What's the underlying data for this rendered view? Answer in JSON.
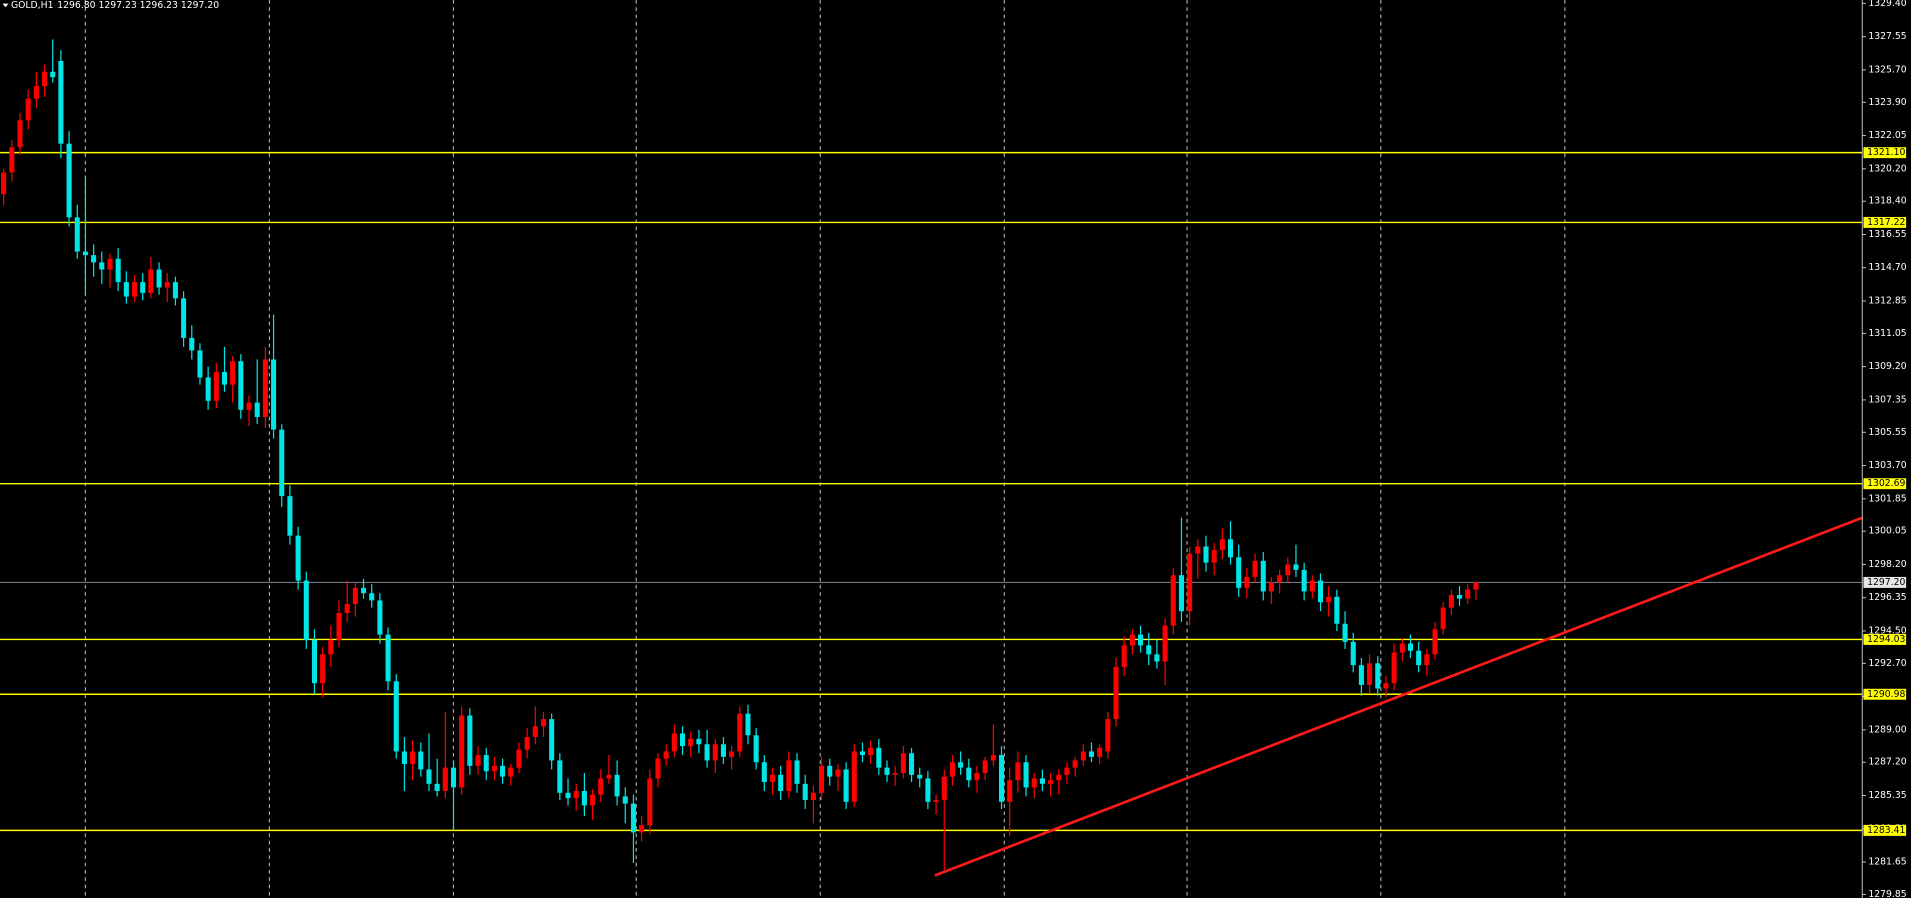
{
  "chart_data": {
    "type": "candlestick",
    "symbol": "GOLD,H1",
    "header_prices": "1296.80 1297.23 1296.23 1297.20",
    "up_color": "#ff0000",
    "down_color": "#00e5e5",
    "level_color": "#ffff00",
    "trendline_color": "#ff1a1a",
    "grid": true,
    "ylim": [
      1279.65,
      1329.59
    ],
    "yticks": [
      {
        "value": 1329.4,
        "label": "1329.40"
      },
      1327.55,
      {
        "value": 1325.7,
        "label": "1325.70"
      },
      {
        "value": 1323.9,
        "label": "1323.90"
      },
      1322.05,
      {
        "value": 1320.2,
        "label": "1320.20"
      },
      {
        "value": 1318.4,
        "label": "1318.40"
      },
      1316.55,
      {
        "value": 1314.7,
        "label": "1314.70"
      },
      1312.85,
      1311.05,
      {
        "value": 1309.2,
        "label": "1309.20"
      },
      1307.35,
      1305.55,
      {
        "value": 1303.7,
        "label": "1303.70"
      },
      1301.85,
      1300.05,
      {
        "value": 1298.2,
        "label": "1298.20"
      },
      1296.35,
      {
        "value": 1294.5,
        "label": "1294.50"
      },
      {
        "value": 1292.7,
        "label": "1292.70"
      },
      1290.85,
      {
        "value": 1289.0,
        "label": "1289.00"
      },
      {
        "value": 1287.2,
        "label": "1287.20"
      },
      1285.35,
      {
        "value": 1283.5,
        "label": "1283.50"
      },
      1281.65,
      1279.85
    ],
    "levels": [
      {
        "value": 1321.1,
        "label": "1321.10"
      },
      {
        "value": 1317.22,
        "label": "1317.22"
      },
      {
        "value": 1302.69,
        "label": "1302.69"
      },
      {
        "value": 1294.03,
        "label": "1294.03"
      },
      {
        "value": 1290.98,
        "label": "1290.98"
      },
      {
        "value": 1283.41,
        "label": "1283.41"
      }
    ],
    "last_price": {
      "value": 1297.2,
      "label": "1297.20"
    },
    "trendline": {
      "start_price": 1280.9,
      "end_price": 1300.8
    },
    "ohlc": [
      [
        1318.8,
        1320.2,
        1318.2,
        1320.0
      ],
      [
        1320.0,
        1321.8,
        1319.5,
        1321.4
      ],
      [
        1321.4,
        1323.3,
        1321.0,
        1322.9
      ],
      [
        1322.9,
        1324.6,
        1322.4,
        1324.1
      ],
      [
        1324.1,
        1325.6,
        1323.6,
        1324.8
      ],
      [
        1324.8,
        1326.0,
        1324.2,
        1325.6
      ],
      [
        1325.6,
        1327.4,
        1325.0,
        1325.3
      ],
      [
        1326.2,
        1326.8,
        1320.8,
        1321.6
      ],
      [
        1321.6,
        1322.3,
        1317.0,
        1317.5
      ],
      [
        1317.5,
        1318.2,
        1315.2,
        1315.6
      ],
      [
        1315.6,
        1319.8,
        1313.2,
        1315.4
      ],
      [
        1315.4,
        1316.0,
        1314.2,
        1315.0
      ],
      [
        1315.0,
        1315.6,
        1313.8,
        1314.6
      ],
      [
        1314.6,
        1315.5,
        1313.6,
        1315.2
      ],
      [
        1315.2,
        1315.8,
        1313.4,
        1313.9
      ],
      [
        1313.9,
        1314.5,
        1312.7,
        1313.1
      ],
      [
        1313.1,
        1314.3,
        1312.8,
        1313.9
      ],
      [
        1313.9,
        1314.4,
        1312.9,
        1313.3
      ],
      [
        1313.3,
        1315.3,
        1313.0,
        1314.6
      ],
      [
        1314.6,
        1315.0,
        1313.2,
        1313.6
      ],
      [
        1313.6,
        1314.4,
        1312.8,
        1313.9
      ],
      [
        1313.9,
        1314.2,
        1312.6,
        1313.0
      ],
      [
        1313.0,
        1313.4,
        1310.3,
        1310.8
      ],
      [
        1310.8,
        1311.5,
        1309.6,
        1310.1
      ],
      [
        1310.1,
        1310.5,
        1308.2,
        1308.6
      ],
      [
        1308.6,
        1309.2,
        1306.8,
        1307.3
      ],
      [
        1307.3,
        1309.4,
        1306.9,
        1308.9
      ],
      [
        1308.9,
        1310.3,
        1307.8,
        1308.2
      ],
      [
        1308.2,
        1309.8,
        1307.2,
        1309.5
      ],
      [
        1309.5,
        1309.9,
        1306.3,
        1306.8
      ],
      [
        1306.8,
        1307.6,
        1305.9,
        1307.2
      ],
      [
        1307.2,
        1309.6,
        1306.0,
        1306.4
      ],
      [
        1306.4,
        1310.3,
        1305.8,
        1309.6
      ],
      [
        1309.6,
        1312.1,
        1305.2,
        1305.7
      ],
      [
        1305.7,
        1306.0,
        1301.4,
        1302.0
      ],
      [
        1302.0,
        1302.6,
        1299.3,
        1299.8
      ],
      [
        1299.8,
        1300.3,
        1296.8,
        1297.3
      ],
      [
        1297.3,
        1297.8,
        1293.5,
        1294.0
      ],
      [
        1294.0,
        1294.6,
        1291.0,
        1291.6
      ],
      [
        1291.6,
        1293.6,
        1290.8,
        1293.2
      ],
      [
        1293.2,
        1294.8,
        1292.5,
        1294.0
      ],
      [
        1294.0,
        1296.2,
        1293.6,
        1295.5
      ],
      [
        1295.5,
        1297.3,
        1295.0,
        1296.0
      ],
      [
        1296.0,
        1297.2,
        1295.3,
        1296.9
      ],
      [
        1296.9,
        1297.4,
        1296.3,
        1296.6
      ],
      [
        1296.6,
        1297.1,
        1295.8,
        1296.2
      ],
      [
        1296.2,
        1296.6,
        1293.8,
        1294.3
      ],
      [
        1294.3,
        1294.7,
        1291.2,
        1291.7
      ],
      [
        1291.7,
        1292.1,
        1287.4,
        1287.8
      ],
      [
        1287.8,
        1288.6,
        1285.6,
        1287.1
      ],
      [
        1287.1,
        1288.4,
        1286.2,
        1287.8
      ],
      [
        1287.8,
        1288.3,
        1286.4,
        1286.8
      ],
      [
        1286.8,
        1288.8,
        1285.6,
        1286.0
      ],
      [
        1286.0,
        1287.4,
        1285.3,
        1285.6
      ],
      [
        1285.6,
        1290.0,
        1285.2,
        1286.9
      ],
      [
        1286.9,
        1287.3,
        1283.4,
        1285.8
      ],
      [
        1285.8,
        1290.3,
        1285.4,
        1289.8
      ],
      [
        1289.8,
        1290.2,
        1286.5,
        1287.0
      ],
      [
        1287.0,
        1288.1,
        1286.5,
        1287.6
      ],
      [
        1287.6,
        1288.0,
        1286.2,
        1286.7
      ],
      [
        1286.7,
        1287.5,
        1286.2,
        1287.0
      ],
      [
        1287.0,
        1287.4,
        1286.0,
        1286.4
      ],
      [
        1286.4,
        1287.1,
        1285.9,
        1286.9
      ],
      [
        1286.9,
        1288.3,
        1286.6,
        1287.9
      ],
      [
        1287.9,
        1289.1,
        1287.4,
        1288.6
      ],
      [
        1288.6,
        1290.3,
        1288.2,
        1289.2
      ],
      [
        1289.2,
        1290.0,
        1288.6,
        1289.6
      ],
      [
        1289.6,
        1289.9,
        1286.8,
        1287.3
      ],
      [
        1287.3,
        1287.7,
        1285.1,
        1285.5
      ],
      [
        1285.5,
        1286.3,
        1284.8,
        1285.2
      ],
      [
        1285.2,
        1286.0,
        1284.5,
        1285.6
      ],
      [
        1285.6,
        1286.6,
        1284.2,
        1284.8
      ],
      [
        1284.8,
        1285.7,
        1284.0,
        1285.4
      ],
      [
        1285.4,
        1286.8,
        1285.0,
        1286.3
      ],
      [
        1286.3,
        1287.6,
        1286.0,
        1286.5
      ],
      [
        1286.5,
        1287.3,
        1284.8,
        1285.3
      ],
      [
        1285.3,
        1285.8,
        1283.8,
        1284.9
      ],
      [
        1284.9,
        1285.4,
        1281.6,
        1283.3
      ],
      [
        1283.3,
        1284.2,
        1282.8,
        1283.7
      ],
      [
        1283.7,
        1286.8,
        1283.2,
        1286.3
      ],
      [
        1286.3,
        1287.7,
        1285.8,
        1287.4
      ],
      [
        1287.4,
        1288.2,
        1287.0,
        1287.8
      ],
      [
        1287.8,
        1289.3,
        1287.5,
        1288.8
      ],
      [
        1288.8,
        1289.2,
        1287.6,
        1288.1
      ],
      [
        1288.1,
        1288.9,
        1287.5,
        1288.5
      ],
      [
        1288.5,
        1289.0,
        1287.7,
        1288.2
      ],
      [
        1288.2,
        1289.0,
        1286.9,
        1287.3
      ],
      [
        1287.3,
        1288.5,
        1286.6,
        1288.2
      ],
      [
        1288.2,
        1288.6,
        1287.1,
        1287.5
      ],
      [
        1287.5,
        1288.1,
        1286.8,
        1287.8
      ],
      [
        1287.8,
        1290.3,
        1287.5,
        1289.9
      ],
      [
        1289.9,
        1290.4,
        1288.2,
        1288.7
      ],
      [
        1288.7,
        1289.1,
        1286.8,
        1287.2
      ],
      [
        1287.2,
        1287.6,
        1285.6,
        1286.1
      ],
      [
        1286.1,
        1286.9,
        1285.4,
        1286.5
      ],
      [
        1286.5,
        1287.0,
        1285.1,
        1285.6
      ],
      [
        1285.6,
        1287.8,
        1285.2,
        1287.3
      ],
      [
        1287.3,
        1287.7,
        1285.5,
        1286.0
      ],
      [
        1286.0,
        1286.5,
        1284.6,
        1285.1
      ],
      [
        1285.1,
        1285.9,
        1283.8,
        1285.5
      ],
      [
        1285.5,
        1287.5,
        1285.1,
        1287.0
      ],
      [
        1287.0,
        1287.4,
        1285.9,
        1286.4
      ],
      [
        1286.4,
        1287.1,
        1285.6,
        1286.8
      ],
      [
        1286.8,
        1287.2,
        1284.6,
        1285.0
      ],
      [
        1285.0,
        1288.2,
        1284.7,
        1287.8
      ],
      [
        1287.8,
        1288.3,
        1287.2,
        1287.6
      ],
      [
        1287.6,
        1288.4,
        1287.1,
        1288.0
      ],
      [
        1288.0,
        1288.5,
        1286.5,
        1286.9
      ],
      [
        1286.9,
        1287.3,
        1286.1,
        1286.5
      ],
      [
        1286.5,
        1287.0,
        1285.9,
        1286.6
      ],
      [
        1286.6,
        1288.1,
        1286.3,
        1287.7
      ],
      [
        1287.7,
        1288.0,
        1286.1,
        1286.5
      ],
      [
        1286.5,
        1286.9,
        1285.8,
        1286.3
      ],
      [
        1286.3,
        1286.7,
        1284.6,
        1285.0
      ],
      [
        1285.0,
        1285.4,
        1284.3,
        1285.1
      ],
      [
        1285.1,
        1286.8,
        1281.2,
        1286.4
      ],
      [
        1286.4,
        1287.6,
        1285.9,
        1287.2
      ],
      [
        1287.2,
        1287.8,
        1286.5,
        1286.9
      ],
      [
        1286.9,
        1287.4,
        1285.8,
        1286.2
      ],
      [
        1286.2,
        1287.0,
        1285.5,
        1286.6
      ],
      [
        1286.6,
        1287.5,
        1286.2,
        1287.3
      ],
      [
        1287.3,
        1289.3,
        1287.0,
        1287.6
      ],
      [
        1287.6,
        1288.1,
        1284.6,
        1285.0
      ],
      [
        1285.0,
        1286.9,
        1283.1,
        1286.2
      ],
      [
        1286.2,
        1287.8,
        1285.5,
        1287.2
      ],
      [
        1287.2,
        1287.6,
        1285.3,
        1285.8
      ],
      [
        1285.8,
        1286.6,
        1285.2,
        1286.3
      ],
      [
        1286.3,
        1286.8,
        1285.6,
        1286.0
      ],
      [
        1286.0,
        1286.6,
        1285.3,
        1286.2
      ],
      [
        1286.2,
        1286.8,
        1285.4,
        1286.5
      ],
      [
        1286.5,
        1287.2,
        1286.0,
        1286.9
      ],
      [
        1286.9,
        1287.5,
        1286.4,
        1287.3
      ],
      [
        1287.3,
        1288.2,
        1287.0,
        1287.8
      ],
      [
        1287.8,
        1288.3,
        1287.2,
        1287.5
      ],
      [
        1287.5,
        1288.2,
        1287.1,
        1288.0
      ],
      [
        1287.8,
        1290.0,
        1287.4,
        1289.6
      ],
      [
        1289.6,
        1293.0,
        1289.2,
        1292.5
      ],
      [
        1292.5,
        1294.2,
        1292.0,
        1293.7
      ],
      [
        1293.7,
        1294.6,
        1293.2,
        1294.3
      ],
      [
        1294.3,
        1294.8,
        1293.3,
        1293.7
      ],
      [
        1293.7,
        1294.4,
        1292.6,
        1293.2
      ],
      [
        1293.2,
        1294.0,
        1292.4,
        1292.8
      ],
      [
        1292.8,
        1295.2,
        1291.5,
        1294.8
      ],
      [
        1294.8,
        1298.0,
        1294.3,
        1297.6
      ],
      [
        1297.6,
        1300.8,
        1295.0,
        1295.6
      ],
      [
        1295.6,
        1299.2,
        1294.8,
        1298.8
      ],
      [
        1298.8,
        1299.6,
        1297.4,
        1299.2
      ],
      [
        1299.2,
        1299.8,
        1297.8,
        1298.3
      ],
      [
        1298.3,
        1299.4,
        1297.6,
        1299.0
      ],
      [
        1299.0,
        1300.2,
        1298.5,
        1299.6
      ],
      [
        1299.6,
        1300.6,
        1298.2,
        1298.6
      ],
      [
        1298.6,
        1299.3,
        1296.4,
        1296.9
      ],
      [
        1296.9,
        1298.0,
        1296.3,
        1297.5
      ],
      [
        1297.5,
        1298.8,
        1297.2,
        1298.4
      ],
      [
        1298.4,
        1298.9,
        1296.2,
        1296.7
      ],
      [
        1296.7,
        1297.5,
        1296.0,
        1297.2
      ],
      [
        1297.2,
        1297.9,
        1296.6,
        1297.6
      ],
      [
        1297.6,
        1298.6,
        1297.2,
        1298.2
      ],
      [
        1298.2,
        1299.3,
        1297.5,
        1297.9
      ],
      [
        1297.9,
        1298.3,
        1296.2,
        1296.7
      ],
      [
        1296.7,
        1297.6,
        1296.3,
        1297.3
      ],
      [
        1297.3,
        1297.7,
        1295.6,
        1296.1
      ],
      [
        1296.1,
        1297.0,
        1295.3,
        1296.4
      ],
      [
        1296.4,
        1296.8,
        1294.5,
        1294.9
      ],
      [
        1294.9,
        1295.6,
        1293.5,
        1293.9
      ],
      [
        1293.9,
        1294.4,
        1292.2,
        1292.6
      ],
      [
        1292.6,
        1293.0,
        1290.9,
        1291.5
      ],
      [
        1291.5,
        1293.2,
        1291.0,
        1292.7
      ],
      [
        1292.7,
        1293.1,
        1290.9,
        1291.3
      ],
      [
        1291.3,
        1292.0,
        1290.8,
        1291.6
      ],
      [
        1291.6,
        1293.8,
        1291.2,
        1293.3
      ],
      [
        1293.3,
        1294.1,
        1292.8,
        1293.8
      ],
      [
        1293.8,
        1294.3,
        1293.0,
        1293.4
      ],
      [
        1293.4,
        1293.9,
        1292.2,
        1292.6
      ],
      [
        1292.6,
        1293.5,
        1292.0,
        1293.2
      ],
      [
        1293.2,
        1295.0,
        1292.9,
        1294.6
      ],
      [
        1294.6,
        1296.1,
        1294.3,
        1295.8
      ],
      [
        1295.8,
        1296.8,
        1295.4,
        1296.5
      ],
      [
        1296.5,
        1297.0,
        1295.9,
        1296.3
      ],
      [
        1296.3,
        1297.1,
        1296.0,
        1296.8
      ],
      [
        1296.8,
        1297.23,
        1296.23,
        1297.2
      ]
    ]
  }
}
